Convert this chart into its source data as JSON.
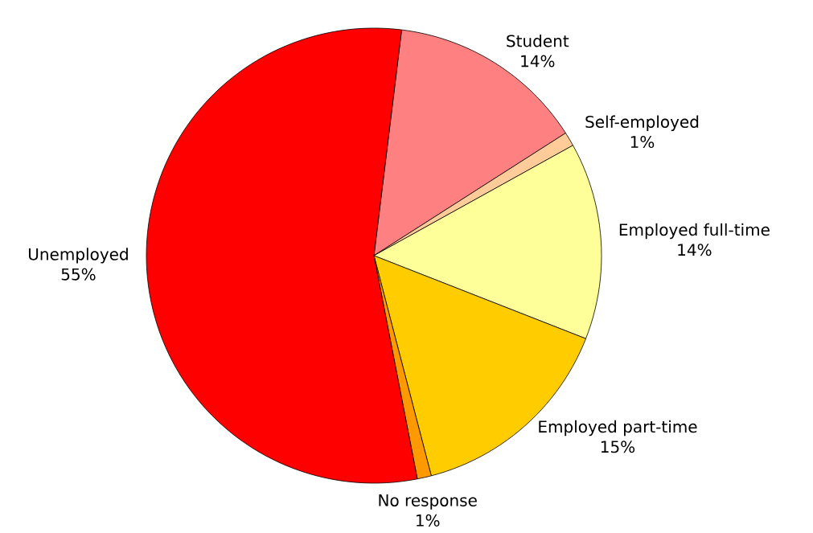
{
  "chart_data": {
    "type": "pie",
    "categories": [
      "Student",
      "Self-employed",
      "Employed full-time",
      "Employed part-time",
      "No response",
      "Unemployed"
    ],
    "values": [
      14,
      1,
      14,
      15,
      1,
      55
    ],
    "value_labels": [
      "14%",
      "1%",
      "14%",
      "15%",
      "1%",
      "55%"
    ],
    "colors": [
      "#ff8080",
      "#ffcc99",
      "#ffff99",
      "#ffcc00",
      "#ff9900",
      "#ff0000"
    ]
  }
}
